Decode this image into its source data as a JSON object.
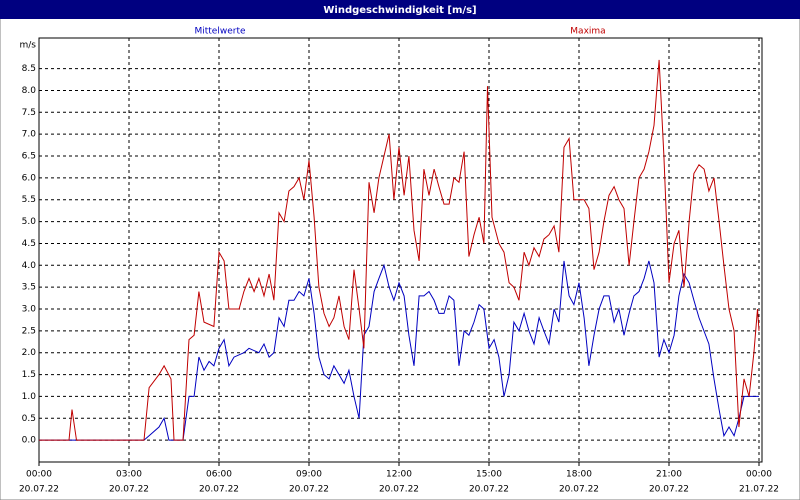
{
  "chart_data": {
    "type": "line",
    "title": "Windgeschwindigkeit [m/s]",
    "ylabel": "m/s",
    "grid": true,
    "xlim": [
      0,
      24
    ],
    "ylim": [
      -0.5,
      9.2
    ],
    "xticks": [
      {
        "value": 0,
        "label": "00:00"
      },
      {
        "value": 3,
        "label": "03:00"
      },
      {
        "value": 6,
        "label": "06:00"
      },
      {
        "value": 9,
        "label": "09:00"
      },
      {
        "value": 12,
        "label": "12:00"
      },
      {
        "value": 15,
        "label": "15:00"
      },
      {
        "value": 18,
        "label": "18:00"
      },
      {
        "value": 21,
        "label": "21:00"
      },
      {
        "value": 24,
        "label": "00:00"
      }
    ],
    "xtick_dates": [
      "20.07.22",
      "20.07.22",
      "20.07.22",
      "20.07.22",
      "20.07.22",
      "20.07.22",
      "20.07.22",
      "20.07.22",
      "21.07.22"
    ],
    "yticks": [
      {
        "value": 0,
        "label": "0.0"
      },
      {
        "value": 0.5,
        "label": "0.5"
      },
      {
        "value": 1,
        "label": "1.0"
      },
      {
        "value": 1.5,
        "label": "1.5"
      },
      {
        "value": 2,
        "label": "2.0"
      },
      {
        "value": 2.5,
        "label": "2.5"
      },
      {
        "value": 3,
        "label": "3.0"
      },
      {
        "value": 3.5,
        "label": "3.5"
      },
      {
        "value": 4,
        "label": "4.0"
      },
      {
        "value": 4.5,
        "label": "4.5"
      },
      {
        "value": 5,
        "label": "5.0"
      },
      {
        "value": 5.5,
        "label": "5.5"
      },
      {
        "value": 6,
        "label": "6.0"
      },
      {
        "value": 6.5,
        "label": "6.5"
      },
      {
        "value": 7,
        "label": "7.0"
      },
      {
        "value": 7.5,
        "label": "7.5"
      },
      {
        "value": 8,
        "label": "8.0"
      },
      {
        "value": 8.5,
        "label": "8.5"
      }
    ],
    "series": [
      {
        "name": "Mittelwerte",
        "color": "#0000c0",
        "x": [
          0,
          3.5,
          3.67,
          4.0,
          4.17,
          4.33,
          4.8,
          5.0,
          5.17,
          5.33,
          5.5,
          5.67,
          5.83,
          6.0,
          6.17,
          6.33,
          6.5,
          6.83,
          7.0,
          7.33,
          7.5,
          7.67,
          7.83,
          8.0,
          8.17,
          8.33,
          8.5,
          8.67,
          8.83,
          9.0,
          9.17,
          9.33,
          9.5,
          9.67,
          9.83,
          10.0,
          10.17,
          10.33,
          10.5,
          10.67,
          10.83,
          11.0,
          11.17,
          11.33,
          11.5,
          11.67,
          11.83,
          12.0,
          12.17,
          12.33,
          12.5,
          12.67,
          12.83,
          13.0,
          13.17,
          13.33,
          13.5,
          13.67,
          13.83,
          14.0,
          14.17,
          14.33,
          14.5,
          14.67,
          14.83,
          15.0,
          15.17,
          15.33,
          15.5,
          15.67,
          15.83,
          16.0,
          16.17,
          16.33,
          16.5,
          16.67,
          16.83,
          17.0,
          17.17,
          17.33,
          17.5,
          17.67,
          17.83,
          18.0,
          18.17,
          18.33,
          18.5,
          18.67,
          18.83,
          19.0,
          19.17,
          19.33,
          19.5,
          19.67,
          19.83,
          20.0,
          20.17,
          20.33,
          20.5,
          20.67,
          20.83,
          21.0,
          21.17,
          21.33,
          21.5,
          21.67,
          21.83,
          22.0,
          22.33,
          22.5,
          22.67,
          22.83,
          23.0,
          23.17,
          23.33,
          23.5,
          23.67,
          23.83,
          24.0
        ],
        "values": [
          0,
          0,
          0.1,
          0.3,
          0.5,
          0,
          0,
          1.0,
          1.0,
          1.9,
          1.6,
          1.8,
          1.7,
          2.1,
          2.3,
          1.7,
          1.9,
          2.0,
          2.1,
          2.0,
          2.2,
          1.9,
          2.0,
          2.8,
          2.6,
          3.2,
          3.2,
          3.4,
          3.3,
          3.7,
          2.9,
          1.9,
          1.5,
          1.4,
          1.7,
          1.5,
          1.3,
          1.6,
          1.0,
          0.5,
          2.4,
          2.6,
          3.4,
          3.7,
          4.0,
          3.5,
          3.2,
          3.6,
          3.3,
          2.4,
          1.7,
          3.3,
          3.3,
          3.4,
          3.2,
          2.9,
          2.9,
          3.3,
          3.2,
          1.7,
          2.5,
          2.4,
          2.7,
          3.1,
          3.0,
          2.1,
          2.3,
          1.9,
          1.0,
          1.5,
          2.7,
          2.5,
          2.9,
          2.5,
          2.2,
          2.8,
          2.5,
          2.2,
          3.0,
          2.7,
          4.1,
          3.3,
          3.1,
          3.6,
          2.8,
          1.7,
          2.4,
          3.0,
          3.3,
          3.3,
          2.7,
          3.0,
          2.4,
          2.9,
          3.3,
          3.4,
          3.7,
          4.1,
          3.6,
          1.9,
          2.3,
          2.0,
          2.4,
          3.3,
          3.8,
          3.6,
          3.2,
          2.8,
          2.2,
          1.4,
          0.7,
          0.1,
          0.3,
          0.1,
          0.5,
          1.0,
          1.0,
          1.0,
          1.0
        ]
      },
      {
        "name": "Maxima",
        "color": "#c00000",
        "x": [
          0,
          1.0,
          1.1,
          1.25,
          3.5,
          3.67,
          4.0,
          4.17,
          4.4,
          4.5,
          4.8,
          5.0,
          5.17,
          5.33,
          5.5,
          5.83,
          6.0,
          6.17,
          6.33,
          6.67,
          6.83,
          7.0,
          7.17,
          7.33,
          7.5,
          7.67,
          7.83,
          8.0,
          8.17,
          8.33,
          8.5,
          8.67,
          8.83,
          9.0,
          9.17,
          9.33,
          9.5,
          9.67,
          9.83,
          10.0,
          10.17,
          10.33,
          10.5,
          10.67,
          10.83,
          11.0,
          11.17,
          11.33,
          11.5,
          11.67,
          11.83,
          12.0,
          12.17,
          12.33,
          12.5,
          12.67,
          12.83,
          13.0,
          13.17,
          13.33,
          13.5,
          13.67,
          13.83,
          14.0,
          14.17,
          14.33,
          14.5,
          14.67,
          14.83,
          14.95,
          15.1,
          15.33,
          15.5,
          15.67,
          15.83,
          16.0,
          16.17,
          16.33,
          16.5,
          16.67,
          16.83,
          17.0,
          17.17,
          17.33,
          17.5,
          17.67,
          17.83,
          18.0,
          18.17,
          18.33,
          18.5,
          18.67,
          18.83,
          19.0,
          19.17,
          19.33,
          19.5,
          19.67,
          19.83,
          20.0,
          20.17,
          20.33,
          20.5,
          20.67,
          20.83,
          21.0,
          21.17,
          21.33,
          21.5,
          21.67,
          21.83,
          22.0,
          22.17,
          22.33,
          22.5,
          22.67,
          22.83,
          23.0,
          23.17,
          23.33,
          23.5,
          23.67,
          23.83,
          23.95,
          24.0
        ],
        "values": [
          0,
          0,
          0.7,
          0,
          0,
          1.2,
          1.5,
          1.7,
          1.4,
          0,
          0,
          2.3,
          2.4,
          3.4,
          2.7,
          2.6,
          4.3,
          4.1,
          3.0,
          3.0,
          3.4,
          3.7,
          3.4,
          3.7,
          3.3,
          3.8,
          3.2,
          5.2,
          5.0,
          5.7,
          5.8,
          6.0,
          5.5,
          6.4,
          5.1,
          3.5,
          2.9,
          2.6,
          2.8,
          3.3,
          2.6,
          2.3,
          3.9,
          3.0,
          2.1,
          5.9,
          5.2,
          6.0,
          6.5,
          7.0,
          5.5,
          6.7,
          5.6,
          6.5,
          4.8,
          4.1,
          6.2,
          5.6,
          6.2,
          5.8,
          5.4,
          5.4,
          6.0,
          5.9,
          6.6,
          4.2,
          4.7,
          5.1,
          4.5,
          8.1,
          5.1,
          4.5,
          4.3,
          3.6,
          3.5,
          3.2,
          4.3,
          4.0,
          4.4,
          4.2,
          4.6,
          4.7,
          4.9,
          4.3,
          6.7,
          6.9,
          5.5,
          5.5,
          5.5,
          5.3,
          3.9,
          4.3,
          5.0,
          5.6,
          5.8,
          5.5,
          5.3,
          4.0,
          5.0,
          6.0,
          6.2,
          6.6,
          7.2,
          8.7,
          6.5,
          3.6,
          4.5,
          4.8,
          3.5,
          5.0,
          6.1,
          6.3,
          6.2,
          5.7,
          6.0,
          5.0,
          4.0,
          3.0,
          2.5,
          0.3,
          1.4,
          1.0,
          2.0,
          3.0,
          2.5
        ]
      }
    ]
  }
}
